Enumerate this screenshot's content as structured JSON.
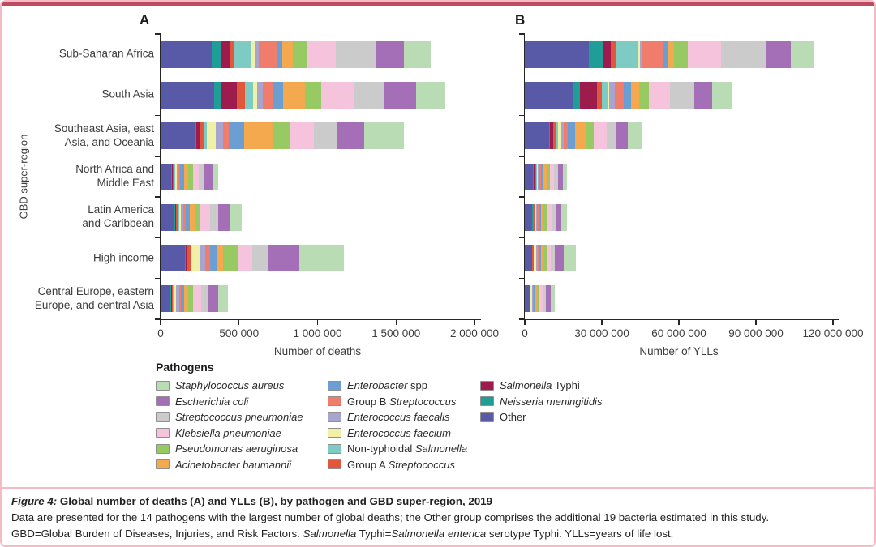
{
  "page": {
    "accent_color": "#bd4a5e",
    "border_color": "#f4bac6"
  },
  "chart_data": {
    "type": "bar",
    "orientation": "horizontal",
    "stacked": true,
    "grid": false,
    "legend_position": "bottom-left",
    "legend_title": "Pathogens",
    "ylabel": "GBD super-region",
    "categories": [
      "Sub-Saharan Africa",
      "South Asia",
      "Southeast Asia, east\nAsia, and Oceania",
      "North Africa and\nMiddle East",
      "Latin America\nand Caribbean",
      "High income",
      "Central Europe, eastern\nEurope, and central Asia"
    ],
    "stack_order_note": "segments stacked left-to-right in reverse legend order (Other leftmost, Staphylococcus aureus rightmost)",
    "pathogens": [
      {
        "name": "Staphylococcus aureus",
        "color": "#b9dcb5",
        "label_parts": [
          {
            "t": "Staphylococcus aureus",
            "i": true
          }
        ]
      },
      {
        "name": "Escherichia coli",
        "color": "#a46fb6",
        "label_parts": [
          {
            "t": "Escherichia coli",
            "i": true
          }
        ]
      },
      {
        "name": "Streptococcus pneumoniae",
        "color": "#cbcbcb",
        "label_parts": [
          {
            "t": "Streptococcus pneumoniae",
            "i": true
          }
        ]
      },
      {
        "name": "Klebsiella pneumoniae",
        "color": "#f5c3dc",
        "label_parts": [
          {
            "t": "Klebsiella pneumoniae",
            "i": true
          }
        ]
      },
      {
        "name": "Pseudomonas aeruginosa",
        "color": "#98ca63",
        "label_parts": [
          {
            "t": "Pseudomonas aeruginosa",
            "i": true
          }
        ]
      },
      {
        "name": "Acinetobacter baumannii",
        "color": "#f4a94e",
        "label_parts": [
          {
            "t": "Acinetobacter baumannii",
            "i": true
          }
        ]
      },
      {
        "name": "Enterobacter spp",
        "color": "#6b9fd3",
        "label_parts": [
          {
            "t": "Enterobacter",
            "i": true
          },
          {
            "t": " spp",
            "i": false
          }
        ]
      },
      {
        "name": "Group B Streptococcus",
        "color": "#f07d6b",
        "label_parts": [
          {
            "t": "Group B ",
            "i": false
          },
          {
            "t": "Streptococcus",
            "i": true
          }
        ]
      },
      {
        "name": "Enterococcus faecalis",
        "color": "#a8a4d0",
        "label_parts": [
          {
            "t": "Enterococcus faecalis",
            "i": true
          }
        ]
      },
      {
        "name": "Enterococcus faecium",
        "color": "#f1f0a7",
        "label_parts": [
          {
            "t": "Enterococcus faecium",
            "i": true
          }
        ]
      },
      {
        "name": "Non-typhoidal Salmonella",
        "color": "#7ecbc3",
        "label_parts": [
          {
            "t": "Non-typhoidal ",
            "i": false
          },
          {
            "t": "Salmonella",
            "i": true
          }
        ]
      },
      {
        "name": "Group A Streptococcus",
        "color": "#e2573c",
        "label_parts": [
          {
            "t": "Group A ",
            "i": false
          },
          {
            "t": "Streptococcus",
            "i": true
          }
        ]
      },
      {
        "name": "Salmonella Typhi",
        "color": "#9e1c4d",
        "label_parts": [
          {
            "t": "Salmonella",
            "i": true
          },
          {
            "t": " Typhi",
            "i": false
          }
        ]
      },
      {
        "name": "Neisseria meningitidis",
        "color": "#1f9e97",
        "label_parts": [
          {
            "t": "Neisseria meningitidis",
            "i": true
          }
        ]
      },
      {
        "name": "Other",
        "color": "#5859a7",
        "label_parts": [
          {
            "t": "Other",
            "i": false
          }
        ]
      }
    ],
    "legend_columns": [
      [
        0,
        1,
        2,
        3,
        4,
        5
      ],
      [
        6,
        7,
        8,
        9,
        10,
        11
      ],
      [
        12,
        13,
        14
      ]
    ],
    "panels": [
      {
        "label": "A",
        "xlabel": "Number of deaths",
        "xlim": [
          0,
          2000000
        ],
        "xticks": [
          0,
          500000,
          1000000,
          1500000,
          2000000
        ],
        "xtick_labels": [
          "0",
          "500 000",
          "1 000 000",
          "1 500 000",
          "2 000 000"
        ],
        "series": [
          {
            "name": "Staphylococcus aureus",
            "values": [
              172000,
              186000,
              253000,
              41000,
              78000,
              284000,
              62000
            ]
          },
          {
            "name": "Escherichia coli",
            "values": [
              172000,
              207000,
              176000,
              47000,
              72000,
              202000,
              72000
            ]
          },
          {
            "name": "Streptococcus pneumoniae",
            "values": [
              258000,
              191000,
              145000,
              36000,
              52000,
              98000,
              41000
            ]
          },
          {
            "name": "Klebsiella pneumoniae",
            "values": [
              181000,
              207000,
              155000,
              41000,
              62000,
              93000,
              52000
            ]
          },
          {
            "name": "Pseudomonas aeruginosa",
            "values": [
              95000,
              103000,
              103000,
              31000,
              36000,
              93000,
              31000
            ]
          },
          {
            "name": "Acinetobacter baumannii",
            "values": [
              69000,
              140000,
              186000,
              26000,
              31000,
              41000,
              26000
            ]
          },
          {
            "name": "Enterobacter spp",
            "values": [
              35000,
              67000,
              98000,
              21000,
              26000,
              41000,
              21000
            ]
          },
          {
            "name": "Group B Streptococcus",
            "values": [
              112000,
              62000,
              36000,
              15000,
              16000,
              31000,
              10000
            ]
          },
          {
            "name": "Enterococcus faecalis",
            "values": [
              26000,
              36000,
              47000,
              10000,
              16000,
              41000,
              16000
            ]
          },
          {
            "name": "Enterococcus faecium",
            "values": [
              26000,
              26000,
              57000,
              10000,
              10000,
              47000,
              16000
            ]
          },
          {
            "name": "Non-typhoidal Salmonella",
            "values": [
              103000,
              52000,
              16000,
              5000,
              5000,
              5000,
              5000
            ]
          },
          {
            "name": "Group A Streptococcus",
            "values": [
              26000,
              52000,
              26000,
              10000,
              16000,
              31000,
              10000
            ]
          },
          {
            "name": "Salmonella Typhi",
            "values": [
              60000,
              103000,
              26000,
              5000,
              5000,
              3000,
              3000
            ]
          },
          {
            "name": "Neisseria meningitidis",
            "values": [
              60000,
              41000,
              10000,
              5000,
              5000,
              5000,
              5000
            ]
          },
          {
            "name": "Other",
            "values": [
              326000,
              341000,
              215000,
              67000,
              88000,
              155000,
              62000
            ]
          }
        ]
      },
      {
        "label": "B",
        "xlabel": "Number of YLLs",
        "xlim": [
          0,
          120000000
        ],
        "xticks": [
          0,
          30000000,
          60000000,
          90000000,
          120000000
        ],
        "xtick_labels": [
          "0",
          "30 000 000",
          "60 000 000",
          "90 000 000",
          "120 000 000"
        ],
        "series": [
          {
            "name": "Staphylococcus aureus",
            "values": [
              9400000,
              8000000,
              5500000,
              1600000,
              2100000,
              4900000,
              1700000
            ]
          },
          {
            "name": "Escherichia coli",
            "values": [
              9600000,
              6900000,
              4200000,
              1800000,
              2100000,
              3300000,
              1800000
            ]
          },
          {
            "name": "Streptococcus pneumoniae",
            "values": [
              17500000,
              9500000,
              4000000,
              1500000,
              1700000,
              1700000,
              1100000
            ]
          },
          {
            "name": "Klebsiella pneumoniae",
            "values": [
              13000000,
              8200000,
              5000000,
              1800000,
              2000000,
              1600000,
              1400000
            ]
          },
          {
            "name": "Pseudomonas aeruginosa",
            "values": [
              5300000,
              3700000,
              2800000,
              1300000,
              1200000,
              1600000,
              900000
            ]
          },
          {
            "name": "Acinetobacter baumannii",
            "values": [
              2200000,
              3400000,
              4500000,
              1200000,
              1000000,
              700000,
              800000
            ]
          },
          {
            "name": "Enterobacter spp",
            "values": [
              2200000,
              2600000,
              2800000,
              1000000,
              900000,
              700000,
              600000
            ]
          },
          {
            "name": "Group B Streptococcus",
            "values": [
              7800000,
              3700000,
              1500000,
              800000,
              600000,
              500000,
              300000
            ]
          },
          {
            "name": "Enterococcus faecalis",
            "values": [
              900000,
              2100000,
              1100000,
              400000,
              500000,
              700000,
              400000
            ]
          },
          {
            "name": "Enterococcus faecium",
            "values": [
              700000,
              800000,
              1200000,
              400000,
              300000,
              800000,
              400000
            ]
          },
          {
            "name": "Non-typhoidal Salmonella",
            "values": [
              8500000,
              2100000,
              800000,
              300000,
              200000,
              100000,
              100000
            ]
          },
          {
            "name": "Group A Streptococcus",
            "values": [
              2200000,
              1900000,
              1000000,
              500000,
              500000,
              600000,
              300000
            ]
          },
          {
            "name": "Salmonella Typhi",
            "values": [
              3400000,
              6600000,
              1200000,
              300000,
              200000,
              50000,
              50000
            ]
          },
          {
            "name": "Neisseria meningitidis",
            "values": [
              5200000,
              2500000,
              400000,
              300000,
              200000,
              100000,
              100000
            ]
          },
          {
            "name": "Other",
            "values": [
              25000000,
              19000000,
              9500000,
              3200000,
              2900000,
              2700000,
              1800000
            ]
          }
        ]
      }
    ]
  },
  "caption": {
    "line1_prefix": "Figure 4:",
    "line1_rest": " Global number of deaths (A) and YLLs (B), by pathogen and GBD super-region, 2019",
    "line2": "Data are presented for the 14 pathogens with the largest number of global deaths; the Other group comprises the additional 19 bacteria estimated in this study.",
    "line3_parts": [
      {
        "t": "GBD=Global Burden of Diseases, Injuries, and Risk Factors. ",
        "i": false
      },
      {
        "t": "Salmonella",
        "i": true
      },
      {
        "t": " Typhi=",
        "i": false
      },
      {
        "t": "Salmonella enterica",
        "i": true
      },
      {
        "t": " serotype Typhi. YLLs=years of life lost.",
        "i": false
      }
    ]
  }
}
